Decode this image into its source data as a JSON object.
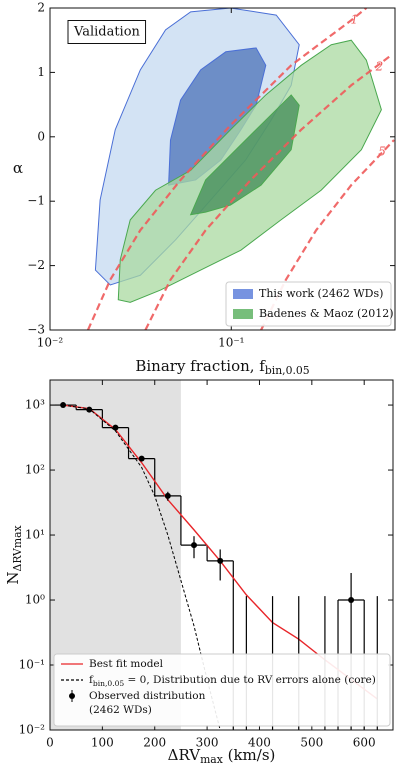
{
  "chart_data": [
    {
      "type": "contour",
      "xscale": "log",
      "xlim": [
        0.01,
        0.8
      ],
      "ylim": [
        -3,
        2
      ],
      "xticks": [
        {
          "value": 0.01,
          "label": "10⁻²"
        },
        {
          "value": 0.1,
          "label": "10⁻¹"
        }
      ],
      "yticks": [
        {
          "value": -3,
          "label": "−3"
        },
        {
          "value": -2,
          "label": "−2"
        },
        {
          "value": -1,
          "label": "−1"
        },
        0,
        1,
        2
      ],
      "xlabel": {
        "text": "Binary fraction, f",
        "sub": "bin,0.05"
      },
      "ylabel": "α",
      "annotation": "Validation",
      "legend": "lower right",
      "series": [
        {
          "name": "This work (2462 WDs)",
          "color": "#4a6fd6",
          "contours": [
            {
              "color": "#c4d9f0",
              "x": [
                0.0178,
                0.0189,
                0.0229,
                0.0315,
                0.0434,
                0.0597,
                0.099,
                0.177,
                0.237,
                0.214,
                0.166,
                0.12,
                0.077,
                0.0493,
                0.0315,
                0.0215
              ],
              "y": [
                -2.07,
                -0.98,
                0.11,
                1.04,
                1.66,
                1.94,
                2.0,
                1.89,
                1.43,
                0.8,
                0.26,
                -0.36,
                -0.98,
                -1.6,
                -2.15,
                -2.3
              ]
            },
            {
              "color": "#4b72b8",
              "x": [
                0.0451,
                0.0462,
                0.0525,
                0.0678,
                0.0933,
                0.137,
                0.155,
                0.137,
                0.113,
                0.0875,
                0.0636
              ],
              "y": [
                -0.75,
                -0.05,
                0.57,
                1.04,
                1.32,
                1.38,
                1.11,
                0.49,
                0.11,
                -0.36,
                -0.67
              ]
            }
          ]
        },
        {
          "name": "Badenes & Maoz (2012)",
          "color": "#4aa84f",
          "contours": [
            {
              "color": "#a9d9a0",
              "x": [
                0.0238,
                0.0244,
                0.0277,
                0.0382,
                0.0597,
                0.099,
                0.155,
                0.243,
                0.356,
                0.459,
                0.556,
                0.673,
                0.522,
                0.313,
                0.188,
                0.113,
                0.0678,
                0.0407,
                0.0277
              ],
              "y": [
                -2.53,
                -1.91,
                -1.29,
                -0.83,
                -0.52,
                0.11,
                0.65,
                1.11,
                1.43,
                1.5,
                1.19,
                0.42,
                -0.2,
                -0.83,
                -1.29,
                -1.76,
                -2.07,
                -2.38,
                -2.57
              ]
            },
            {
              "color": "#3f8a55",
              "x": [
                0.0597,
                0.0722,
                0.106,
                0.155,
                0.214,
                0.237,
                0.214,
                0.146,
                0.099,
                0.0722
              ],
              "y": [
                -1.21,
                -0.67,
                -0.2,
                0.26,
                0.65,
                0.49,
                -0.2,
                -0.75,
                -1.06,
                -1.17
              ]
            }
          ]
        }
      ],
      "curves": [
        {
          "label": "1",
          "color": "#ee5a5a",
          "x": [
            0.0162,
            0.0215,
            0.0315,
            0.0525,
            0.099,
            0.214,
            0.459,
            0.556
          ],
          "y": [
            -3,
            -2.22,
            -1.45,
            -0.67,
            0.18,
            1.11,
            1.81,
            2
          ]
        },
        {
          "label": "2",
          "color": "#ee5a5a",
          "x": [
            0.0336,
            0.0462,
            0.0722,
            0.128,
            0.243,
            0.459,
            0.765
          ],
          "y": [
            -3,
            -2.22,
            -1.45,
            -0.67,
            0.11,
            0.8,
            1.27
          ]
        },
        {
          "label": "5",
          "color": "#ee5a5a",
          "x": [
            0.146,
            0.2,
            0.294,
            0.459,
            0.79
          ],
          "y": [
            -3,
            -2.22,
            -1.45,
            -0.75,
            -0.05
          ]
        }
      ]
    },
    {
      "type": "histogram",
      "xlim": [
        0,
        655
      ],
      "yscale": "log",
      "ylim": [
        0.01,
        2430
      ],
      "xticks": [
        0,
        100,
        200,
        300,
        400,
        500,
        600
      ],
      "yticks": [
        {
          "value": 0.01,
          "label": "10⁻²"
        },
        {
          "value": 0.1,
          "label": "10⁻¹"
        },
        {
          "value": 1,
          "label": "10⁰"
        },
        {
          "value": 10,
          "label": "10¹"
        },
        {
          "value": 100,
          "label": "10²"
        },
        {
          "value": 1000,
          "label": "10³"
        }
      ],
      "xlabel": {
        "text": "ΔRV",
        "sub": "max",
        "after": " (km/s)"
      },
      "ylabel": {
        "text": "N",
        "sub": "ΔRVmax"
      },
      "shade": [
        0,
        250
      ],
      "shade_color": "#e1e1e1",
      "bins": [
        0,
        50,
        100,
        150,
        200,
        250,
        300,
        350,
        400,
        450,
        500,
        550,
        600,
        650
      ],
      "counts": [
        1000,
        850,
        450,
        150,
        40,
        7,
        4,
        null,
        null,
        null,
        null,
        1,
        null
      ],
      "hist_color": "#000000",
      "legend": "lower left",
      "series": [
        {
          "name": "Best fit model",
          "color": "#e8262a",
          "style": "solid",
          "x": [
            25,
            75,
            125,
            175,
            225,
            275,
            325,
            375,
            425,
            475,
            525,
            575,
            625
          ],
          "values": [
            1000,
            880,
            420,
            130,
            35,
            12,
            4,
            1.2,
            0.45,
            0.25,
            0.12,
            0.06,
            0.03
          ]
        },
        {
          "name": {
            "text": "f",
            "sub": "bin,0.05",
            "after": " = 0, Distribution due to RV errors alone (core)"
          },
          "color": "#000000",
          "style": "dashed",
          "x": [
            25,
            75,
            125,
            175,
            200,
            225,
            250,
            275,
            300,
            325
          ],
          "values": [
            1000,
            870,
            400,
            110,
            40,
            10,
            2,
            0.4,
            0.06,
            0.01
          ]
        }
      ],
      "observed": {
        "name": [
          "Observed distribution",
          "(2462 WDs)"
        ],
        "color": "#000000",
        "x": [
          25,
          75,
          125,
          175,
          225,
          275,
          325,
          575
        ],
        "values": [
          1000,
          850,
          450,
          150,
          40,
          7,
          4,
          1
        ],
        "yerr": [
          32,
          29,
          21,
          12,
          6.3,
          2.6,
          2,
          1.6
        ]
      },
      "upper_limits": {
        "x": [
          375,
          425,
          475,
          525,
          625
        ],
        "values": [
          1.15,
          1.15,
          1.15,
          1.15,
          1.15
        ]
      }
    }
  ]
}
